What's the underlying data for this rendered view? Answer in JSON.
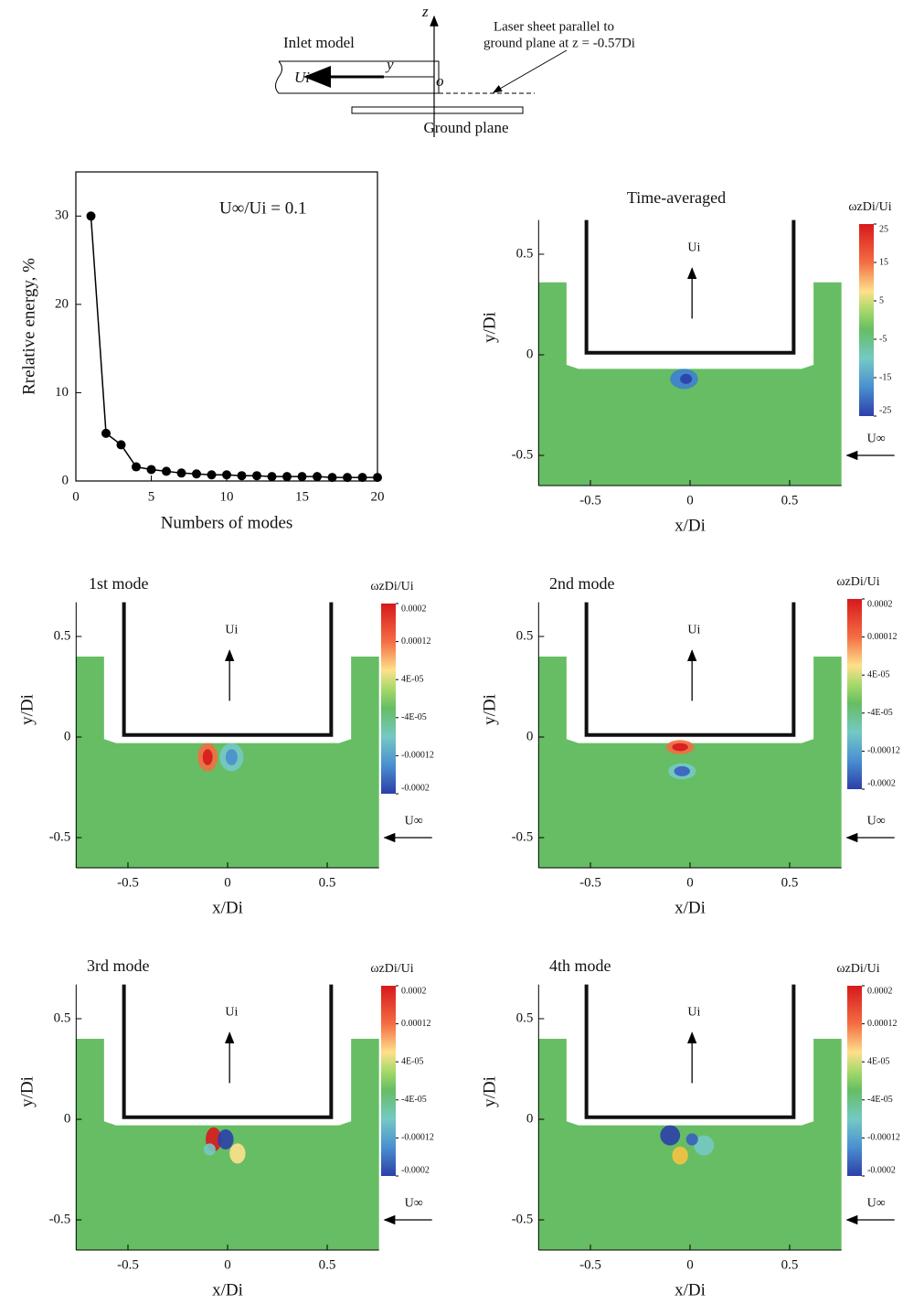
{
  "schematic": {
    "z_label": "z",
    "y_label": "y",
    "o_label": "o",
    "inlet_label": "Inlet model",
    "velocity_label": "Ui",
    "laser_label_1": "Laser sheet parallel to",
    "laser_label_2": "ground plane at z = -0.57Di",
    "ground_label": "Ground plane"
  },
  "chart_data": [
    {
      "type": "line",
      "xlabel": "Numbers of modes",
      "ylabel": "Rrelative energy, %",
      "annotation": "U∞/Ui = 0.1",
      "color": "#000000",
      "x": [
        1,
        2,
        3,
        4,
        5,
        6,
        7,
        8,
        9,
        10,
        11,
        12,
        13,
        14,
        15,
        16,
        17,
        18,
        19,
        20
      ],
      "values": [
        30,
        5.4,
        4.1,
        1.6,
        1.3,
        1.1,
        0.9,
        0.8,
        0.7,
        0.7,
        0.6,
        0.6,
        0.5,
        0.5,
        0.5,
        0.5,
        0.4,
        0.4,
        0.4,
        0.4
      ],
      "xlim": [
        0,
        20
      ],
      "ylim": [
        0,
        35
      ],
      "xticks": [
        0,
        5,
        10,
        15,
        20
      ],
      "yticks": [
        0,
        10,
        20,
        30
      ]
    },
    {
      "type": "field",
      "title": "Time-averaged",
      "xlabel": "x/Di",
      "ylabel": "y/Di",
      "inlet_velocity_label": "Ui",
      "freestream_label": "U∞",
      "xlim": [
        -0.76,
        0.76
      ],
      "ylim": [
        -0.65,
        0.67
      ],
      "xticks": [
        -0.5,
        0,
        0.5
      ],
      "yticks": [
        -0.5,
        0,
        0.5
      ],
      "colorbar_label": "ωzDi/Ui",
      "clim": [
        -25,
        25
      ],
      "colorbar_ticks": [
        25,
        15,
        5,
        -5,
        -15,
        -25
      ]
    },
    {
      "type": "field",
      "title": "1st mode",
      "xlabel": "x/Di",
      "ylabel": "y/Di",
      "inlet_velocity_label": "Ui",
      "freestream_label": "U∞",
      "xlim": [
        -0.76,
        0.76
      ],
      "ylim": [
        -0.65,
        0.67
      ],
      "xticks": [
        -0.5,
        0,
        0.5
      ],
      "yticks": [
        -0.5,
        0,
        0.5
      ],
      "colorbar_label": "ωzDi/Ui",
      "clim": [
        -0.0002,
        0.0002
      ],
      "colorbar_ticks": [
        0.0002,
        0.00012,
        {
          "value": 4e-05,
          "label": "4E-05"
        },
        {
          "value": -4e-05,
          "label": "-4E-05"
        },
        -0.00012,
        -0.0002
      ]
    },
    {
      "type": "field",
      "title": "2nd mode",
      "xlabel": "x/Di",
      "ylabel": "y/Di",
      "inlet_velocity_label": "Ui",
      "freestream_label": "U∞",
      "xlim": [
        -0.76,
        0.76
      ],
      "ylim": [
        -0.65,
        0.67
      ],
      "xticks": [
        -0.5,
        0,
        0.5
      ],
      "yticks": [
        -0.5,
        0,
        0.5
      ],
      "colorbar_label": "ωzDi/Ui",
      "clim": [
        -0.0002,
        0.0002
      ],
      "colorbar_ticks": [
        0.0002,
        0.00012,
        {
          "value": 4e-05,
          "label": "4E-05"
        },
        {
          "value": -4e-05,
          "label": "-4E-05"
        },
        -0.00012,
        -0.0002
      ]
    },
    {
      "type": "field",
      "title": "3rd mode",
      "xlabel": "x/Di",
      "ylabel": "y/Di",
      "inlet_velocity_label": "Ui",
      "freestream_label": "U∞",
      "xlim": [
        -0.76,
        0.76
      ],
      "ylim": [
        -0.65,
        0.67
      ],
      "xticks": [
        -0.5,
        0,
        0.5
      ],
      "yticks": [
        -0.5,
        0,
        0.5
      ],
      "colorbar_label": "ωzDi/Ui",
      "clim": [
        -0.0002,
        0.0002
      ],
      "colorbar_ticks": [
        0.0002,
        0.00012,
        {
          "value": 4e-05,
          "label": "4E-05"
        },
        {
          "value": -4e-05,
          "label": "-4E-05"
        },
        -0.00012,
        -0.0002
      ]
    },
    {
      "type": "field",
      "title": "4th mode",
      "xlabel": "x/Di",
      "ylabel": "y/Di",
      "inlet_velocity_label": "Ui",
      "freestream_label": "U∞",
      "xlim": [
        -0.76,
        0.76
      ],
      "ylim": [
        -0.65,
        0.67
      ],
      "xticks": [
        -0.5,
        0,
        0.5
      ],
      "yticks": [
        -0.5,
        0,
        0.5
      ],
      "colorbar_label": "ωzDi/Ui",
      "clim": [
        -0.0002,
        0.0002
      ],
      "colorbar_ticks": [
        0.0002,
        0.00012,
        {
          "value": 4e-05,
          "label": "4E-05"
        },
        {
          "value": -4e-05,
          "label": "-4E-05"
        },
        -0.00012,
        -0.0002
      ]
    }
  ]
}
